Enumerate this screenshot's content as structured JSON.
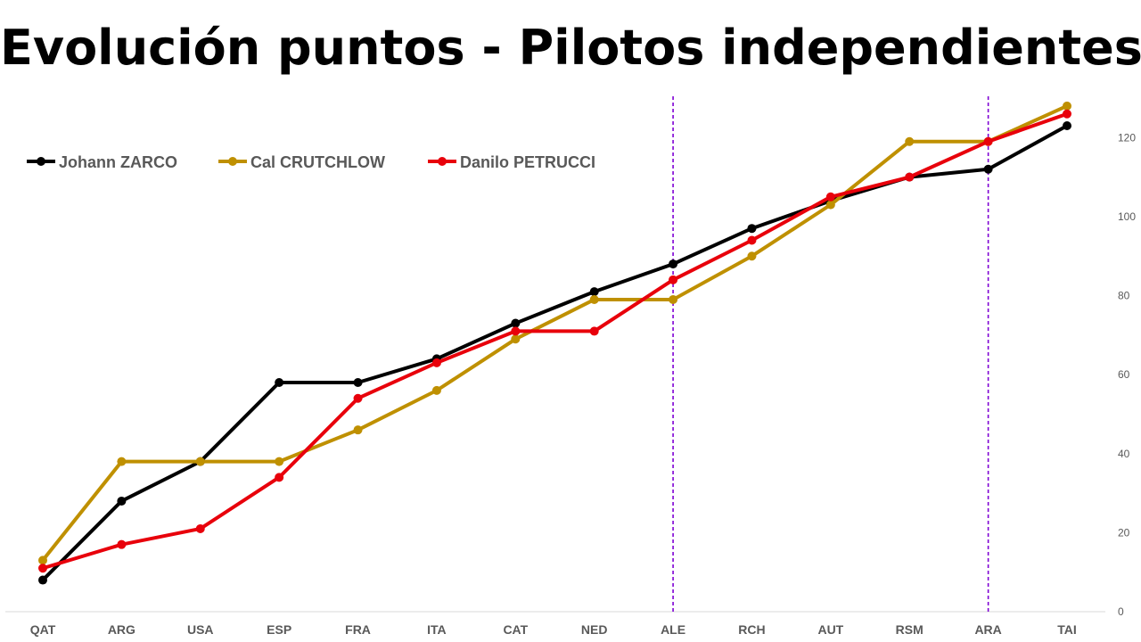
{
  "title": "Evolución puntos - Pilotos independientes",
  "chart_data": {
    "type": "line",
    "title": "Evolución puntos - Pilotos independientes",
    "xlabel": "",
    "ylabel": "",
    "categories": [
      "QAT",
      "ARG",
      "USA",
      "ESP",
      "FRA",
      "ITA",
      "CAT",
      "NED",
      "ALE",
      "RCH",
      "AUT",
      "RSM",
      "ARA",
      "TAI"
    ],
    "ylim": [
      0,
      130
    ],
    "yticks": [
      0,
      20,
      40,
      60,
      80,
      100,
      120
    ],
    "y_axis_side": "right",
    "grid": false,
    "legend_position": "top-left",
    "series": [
      {
        "name": "Johann ZARCO",
        "color": "#000000",
        "values": [
          8,
          28,
          38,
          58,
          58,
          64,
          73,
          81,
          88,
          97,
          104,
          110,
          112,
          123
        ]
      },
      {
        "name": "Cal CRUTCHLOW",
        "color": "#BF9000",
        "values": [
          13,
          38,
          38,
          38,
          46,
          56,
          69,
          79,
          79,
          90,
          103,
          119,
          119,
          128
        ]
      },
      {
        "name": "Danilo PETRUCCI",
        "color": "#E8000B",
        "values": [
          11,
          17,
          21,
          34,
          54,
          63,
          71,
          71,
          84,
          94,
          105,
          110,
          119,
          126
        ]
      }
    ],
    "reference_lines": [
      {
        "category": "ALE",
        "color": "#7F00D4",
        "style": "dashed"
      },
      {
        "category": "ARA",
        "color": "#7F00D4",
        "style": "dashed"
      }
    ]
  }
}
